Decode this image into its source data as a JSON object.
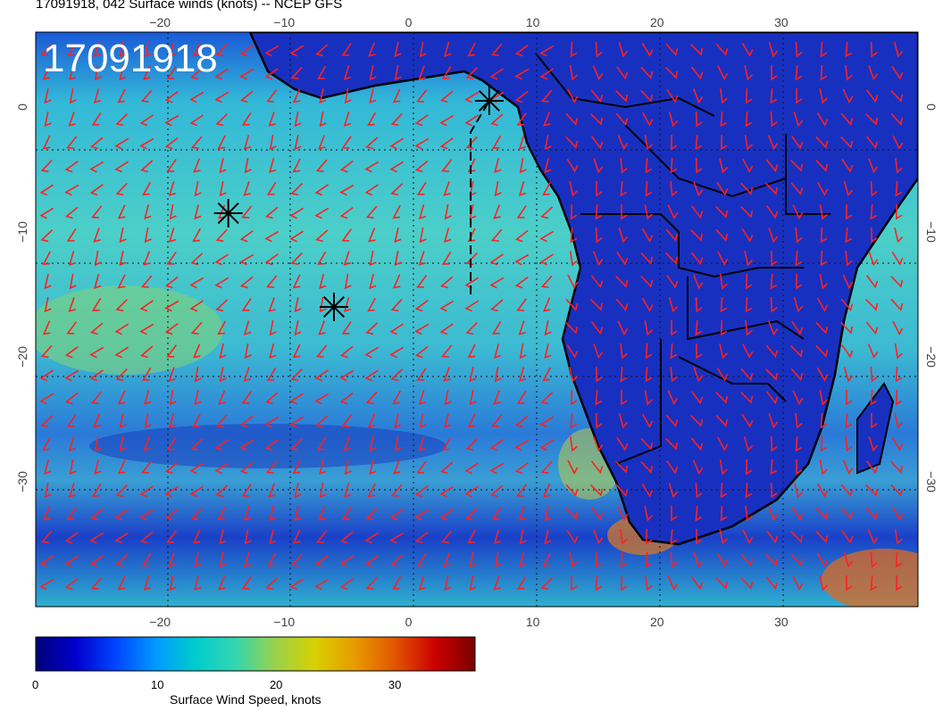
{
  "title": "17091918, 042 Surface winds (knots) -- NCEP GFS",
  "stamp": "17091918",
  "map": {
    "lon_range": [
      -30,
      41
    ],
    "lat_range": [
      -40,
      6
    ],
    "lon_ticks": [
      -20,
      -10,
      0,
      10,
      20,
      30
    ],
    "lat_ticks": [
      0,
      -10,
      -20,
      -30
    ],
    "lon_tick_labels": [
      "−20",
      "−10",
      "0",
      "10",
      "20",
      "30"
    ],
    "lat_tick_labels": [
      "0",
      "−10",
      "−20",
      "−30"
    ],
    "grid": "dotted",
    "barb_color": "#ff2020",
    "markers": [
      {
        "type": "asterisk",
        "lon": 6.5,
        "lat": 0.5
      },
      {
        "type": "asterisk",
        "lon": -14.5,
        "lat": -8.5
      },
      {
        "type": "asterisk",
        "lon": -6,
        "lat": -16
      }
    ],
    "track": {
      "lon": [
        5,
        5,
        6.5
      ],
      "lat": [
        -15,
        -2,
        0.5
      ]
    }
  },
  "colorbar": {
    "label": "Surface Wind Speed, knots",
    "range": [
      0,
      37
    ],
    "ticks": [
      0,
      10,
      20,
      30
    ],
    "tick_labels": [
      "0",
      "10",
      "20",
      "30"
    ],
    "colors": [
      "#00007a",
      "#0000cc",
      "#0044ff",
      "#0099ff",
      "#00cccc",
      "#33d6b0",
      "#9ad24a",
      "#d8d000",
      "#e89a00",
      "#e05500",
      "#cc0000",
      "#7a0000"
    ]
  }
}
